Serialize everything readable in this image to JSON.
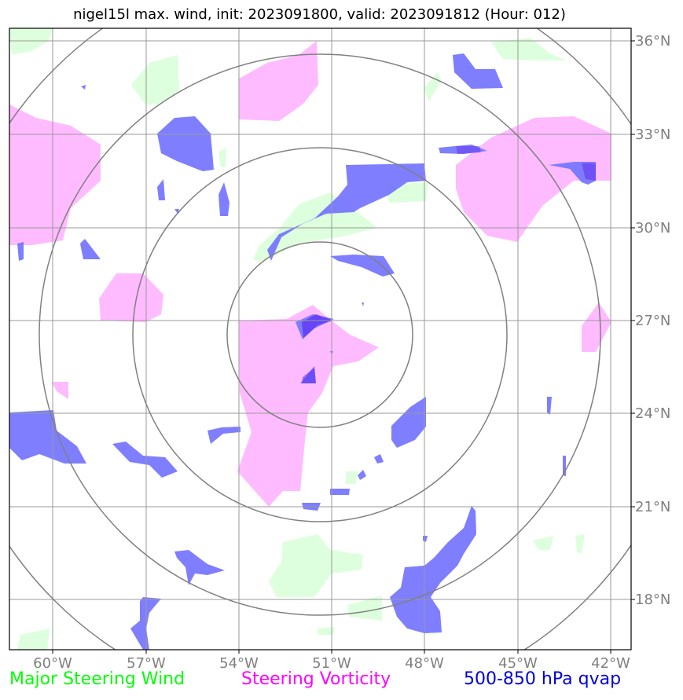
{
  "title": "nigel15l max. wind, init: 2023091800, valid: 2023091812 (Hour: 012)",
  "chart_data": {
    "type": "map",
    "x_ticks": [
      "60°W",
      "57°W",
      "54°W",
      "51°W",
      "48°W",
      "45°W",
      "42°W"
    ],
    "y_ticks": [
      "36°N",
      "33°N",
      "30°N",
      "27°N",
      "24°N",
      "21°N",
      "18°N"
    ],
    "grid": true,
    "range_rings": 4,
    "legend": [
      {
        "label": "Major Steering Wind",
        "color": "#00ff00"
      },
      {
        "label": "Steering Vorticity",
        "color": "#ff00ff"
      },
      {
        "label": "500-850 hPa qvap",
        "color": "#0000dd"
      }
    ],
    "fill_colors": {
      "wind": "#ddffdd",
      "vorticity": "#ffbbff",
      "qvap": "#7777ff"
    }
  }
}
